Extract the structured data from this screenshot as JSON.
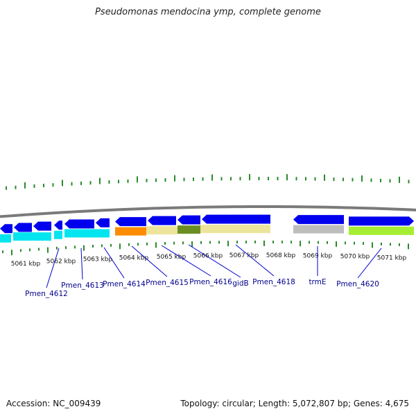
{
  "title": "Pseudomonas mendocina ymp, complete genome",
  "footer": {
    "accession": "Accession: NC_009439",
    "summary": "Topology: circular; Length: 5,072,807 bp; Genes: 4,675"
  },
  "colors": {
    "forward_gene": "#0000ee",
    "reverse_gene": "#00e5f0",
    "backbone": "#7a7a7a",
    "ticks": "#2a8a2a",
    "label": "#00008b",
    "orange": "#ff8c00",
    "khaki": "#ede49c",
    "olive": "#6b8e23",
    "grey": "#bdbdbd",
    "lime": "#a6ee34"
  },
  "kbp_labels": [
    "5061 kbp",
    "5062 kbp",
    "5063 kbp",
    "5064 kbp",
    "5065 kbp",
    "5066 kbp",
    "5067 kbp",
    "5068 kbp",
    "5069 kbp",
    "5070 kbp",
    "5071 kbp"
  ],
  "gene_labels": [
    "Pmen_4612",
    "Pmen_4613",
    "Pmen_4614",
    "Pmen_4615",
    "Pmen_4616",
    "gidB",
    "Pmen_4618",
    "trmE",
    "Pmen_4620"
  ]
}
